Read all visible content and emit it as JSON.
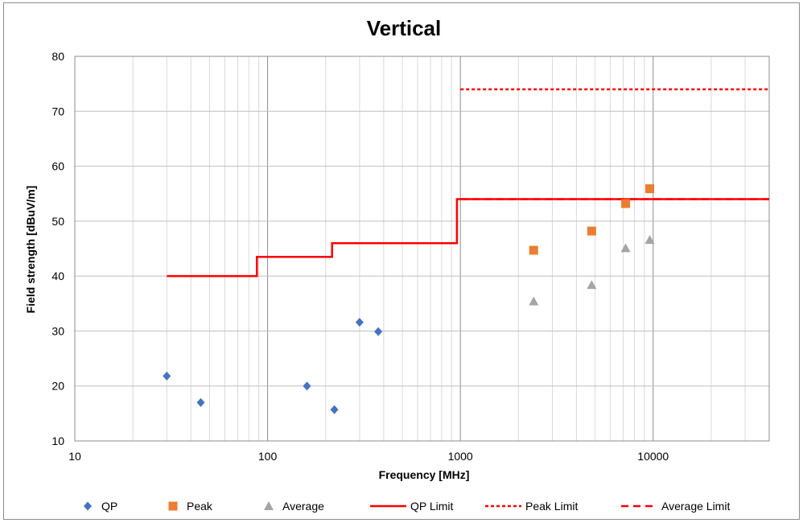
{
  "chart_data": {
    "type": "scatter",
    "title": "Vertical",
    "xlabel": "Frequency [MHz]",
    "ylabel": "Field strength [dBuV/m]",
    "x_scale": "log",
    "xlim": [
      10,
      40000
    ],
    "ylim": [
      10,
      80
    ],
    "x_ticks": [
      10,
      100,
      1000,
      10000
    ],
    "x_tick_labels": [
      "10",
      "100",
      "1000",
      "10000"
    ],
    "y_ticks": [
      10,
      20,
      30,
      40,
      50,
      60,
      70,
      80
    ],
    "y_tick_labels": [
      "10",
      "20",
      "30",
      "40",
      "50",
      "60",
      "70",
      "80"
    ],
    "grid": true,
    "legend_position": "bottom",
    "series": [
      {
        "name": "QP",
        "kind": "points",
        "marker": "diamond",
        "color": "#4472c4",
        "x": [
          30,
          45,
          160,
          222,
          300,
          375
        ],
        "y": [
          21.8,
          17.0,
          20.0,
          15.7,
          31.6,
          29.9
        ]
      },
      {
        "name": "Peak",
        "kind": "points",
        "marker": "square",
        "color": "#ed7d31",
        "x": [
          2400,
          4800,
          7200,
          9600
        ],
        "y": [
          44.7,
          48.2,
          53.2,
          55.9
        ]
      },
      {
        "name": "Average",
        "kind": "points",
        "marker": "triangle",
        "color": "#a5a5a5",
        "x": [
          2400,
          4800,
          7200,
          9600
        ],
        "y": [
          35.4,
          38.4,
          45.1,
          46.6
        ]
      },
      {
        "name": "QP Limit",
        "kind": "line",
        "style": "solid",
        "color": "#ff0000",
        "x": [
          30,
          88,
          88,
          216,
          216,
          960,
          960,
          40000
        ],
        "y": [
          40,
          40,
          43.5,
          43.5,
          46,
          46,
          54,
          54
        ]
      },
      {
        "name": "Peak Limit",
        "kind": "line",
        "style": "dotted",
        "color": "#ff0000",
        "x": [
          1000,
          40000
        ],
        "y": [
          74,
          74
        ]
      },
      {
        "name": "Average Limit",
        "kind": "line",
        "style": "dashed",
        "color": "#ff0000",
        "x": [
          1000,
          40000
        ],
        "y": [
          54,
          54
        ]
      }
    ]
  }
}
